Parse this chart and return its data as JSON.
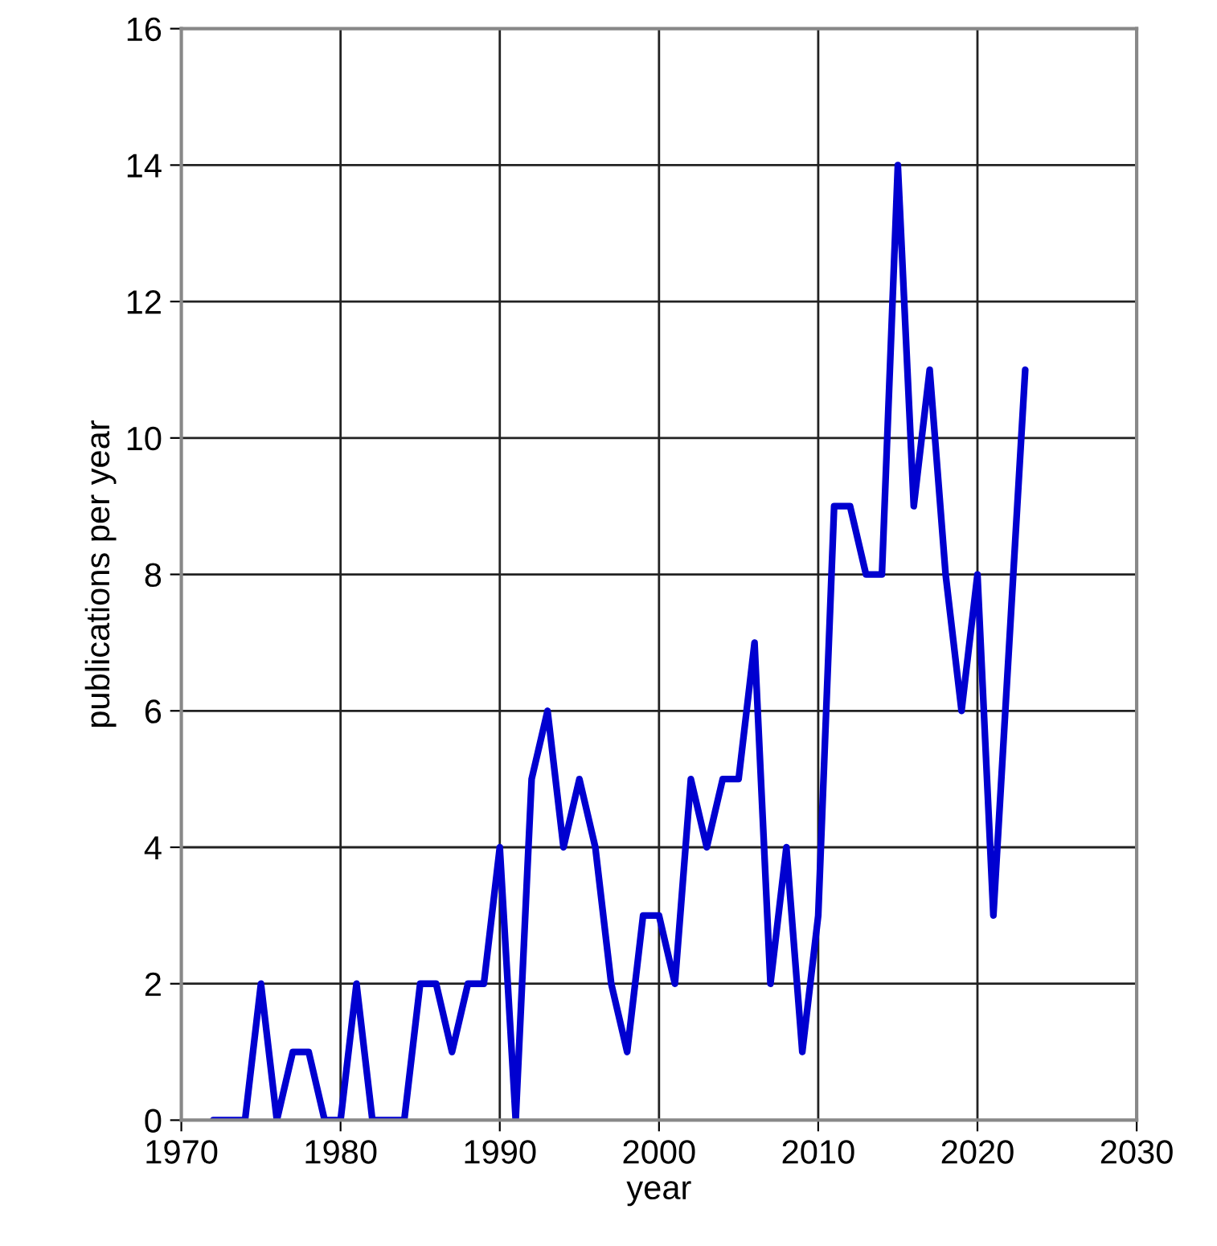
{
  "chart_data": {
    "type": "line",
    "xlabel": "year",
    "ylabel": "publications per year",
    "x": [
      1972,
      1973,
      1974,
      1975,
      1976,
      1977,
      1978,
      1979,
      1980,
      1981,
      1982,
      1983,
      1984,
      1985,
      1986,
      1987,
      1988,
      1989,
      1990,
      1991,
      1992,
      1993,
      1994,
      1995,
      1996,
      1997,
      1998,
      1999,
      2000,
      2001,
      2002,
      2003,
      2004,
      2005,
      2006,
      2007,
      2008,
      2009,
      2010,
      2011,
      2012,
      2013,
      2014,
      2015,
      2016,
      2017,
      2018,
      2019,
      2020,
      2021,
      2022,
      2023
    ],
    "series": [
      {
        "color": "#0000d0",
        "values": [
          0,
          0,
          0,
          2,
          0,
          1,
          1,
          0,
          0,
          2,
          0,
          0,
          0,
          2,
          2,
          1,
          2,
          2,
          4,
          0,
          5,
          6,
          4,
          5,
          4,
          2,
          1,
          3,
          3,
          2,
          5,
          4,
          5,
          5,
          7,
          2,
          4,
          1,
          3,
          9,
          9,
          8,
          8,
          14,
          9,
          11,
          8,
          6,
          8,
          3,
          7,
          11
        ]
      }
    ],
    "xlim": [
      1970,
      2030
    ],
    "xticks": [
      1970,
      1980,
      1990,
      2000,
      2010,
      2020,
      2030
    ],
    "ylim": [
      0,
      16
    ],
    "yticks": [
      0,
      2,
      4,
      6,
      8,
      10,
      12,
      14,
      16
    ],
    "grid": true,
    "marker": "none",
    "line_style": "solid"
  }
}
